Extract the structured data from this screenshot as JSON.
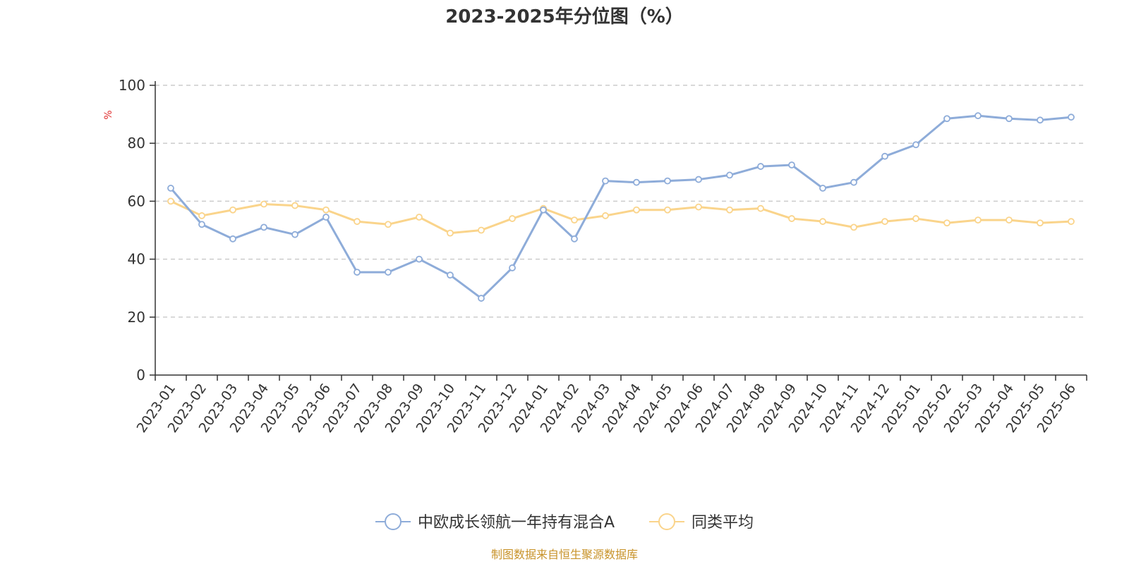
{
  "chart_data": {
    "type": "line",
    "title": "2023-2025年分位图（%）",
    "ylabel": "%",
    "ylim": [
      0,
      100
    ],
    "yticks": [
      "0",
      "20",
      "40",
      "60",
      "80",
      "100"
    ],
    "grid": true,
    "legend_position": "bottom",
    "categories": [
      "2023-01",
      "2023-02",
      "2023-03",
      "2023-04",
      "2023-05",
      "2023-06",
      "2023-07",
      "2023-08",
      "2023-09",
      "2023-10",
      "2023-11",
      "2023-12",
      "2024-01",
      "2024-02",
      "2024-03",
      "2024-04",
      "2024-05",
      "2024-06",
      "2024-07",
      "2024-08",
      "2024-09",
      "2024-10",
      "2024-11",
      "2024-12",
      "2025-01",
      "2025-02",
      "2025-03",
      "2025-04",
      "2025-05",
      "2025-06"
    ],
    "series": [
      {
        "name": "中欧成长领航一年持有混合A",
        "color": "#8eacd9",
        "values": [
          64.5,
          52,
          47,
          51,
          48.5,
          54.5,
          35.5,
          35.5,
          40,
          34.5,
          26.5,
          37,
          57,
          47,
          67,
          66.5,
          67,
          67.5,
          69,
          72,
          72.5,
          64.5,
          66.5,
          75.5,
          79.5,
          88.5,
          89.5,
          88.5,
          88,
          89
        ]
      },
      {
        "name": "同类平均",
        "color": "#fad48b",
        "values": [
          60,
          55,
          57,
          59,
          58.5,
          57,
          53,
          52,
          54.5,
          49,
          50,
          54,
          57.5,
          53.5,
          55,
          57,
          57,
          58,
          57,
          57.5,
          54,
          53,
          51,
          53,
          54,
          52.5,
          53.5,
          53.5,
          52.5,
          53
        ]
      }
    ]
  },
  "source_text": "制图数据来自恒生聚源数据库"
}
